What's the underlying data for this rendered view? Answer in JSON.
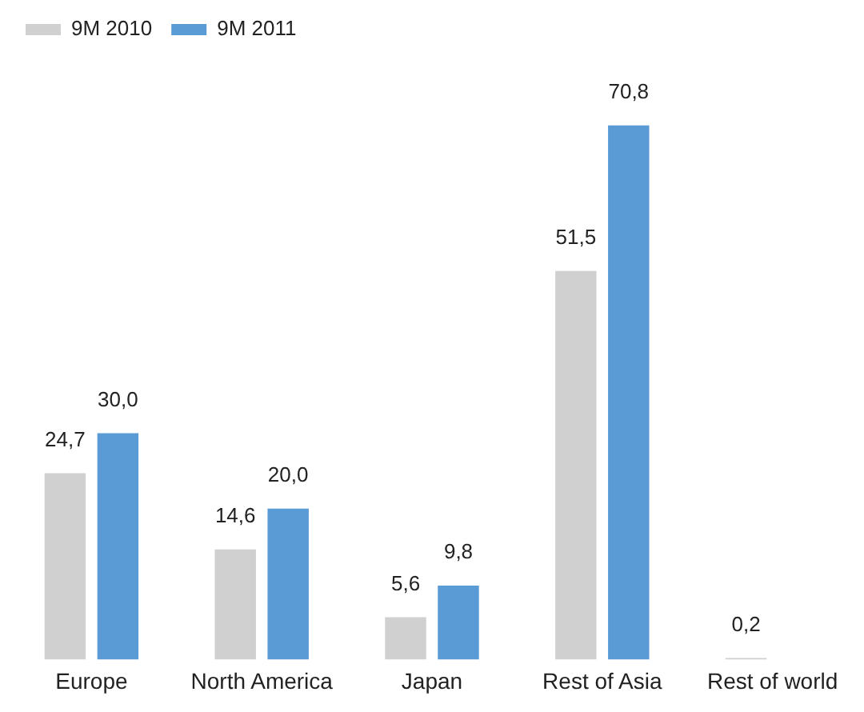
{
  "chart_data": {
    "type": "bar",
    "categories": [
      "Europe",
      "North America",
      "Japan",
      "Rest of Asia",
      "Rest of world"
    ],
    "series": [
      {
        "name": "9M 2010",
        "color": "#d0d0d0",
        "values": [
          24.7,
          14.6,
          5.6,
          51.5,
          0.2
        ],
        "value_labels": [
          "24,7",
          "14,6",
          "5,6",
          "51,5",
          "0,2"
        ]
      },
      {
        "name": "9M 2011",
        "color": "#5b9bd5",
        "values": [
          30.0,
          20.0,
          9.8,
          70.8,
          null
        ],
        "value_labels": [
          "30,0",
          "20,0",
          "9,8",
          "70,8",
          null
        ]
      }
    ],
    "legend": "top left"
  }
}
